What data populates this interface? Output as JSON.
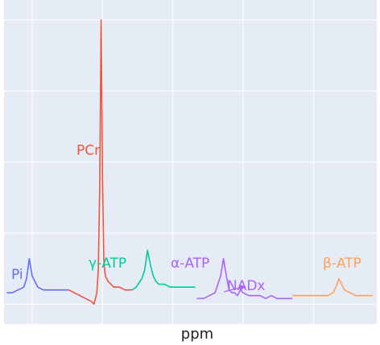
{
  "chart_data": {
    "type": "line",
    "title": "",
    "xlabel": "ppm",
    "ylabel": "",
    "x_reversed": true,
    "tick_labels_shown": false,
    "grid": true,
    "background": "#E5ECF6",
    "gridline_color": "#FFFFFF",
    "legend": "none",
    "series": [
      {
        "name": "Pi",
        "color": "#636EFA",
        "x": [
          6.8,
          6.4,
          6.0,
          5.6,
          5.4,
          5.2,
          5.0,
          4.6,
          4.2,
          3.8,
          3.4,
          3.0,
          2.6,
          2.4
        ],
        "y": [
          0.04,
          0.04,
          0.05,
          0.06,
          0.09,
          0.16,
          0.1,
          0.06,
          0.05,
          0.05,
          0.05,
          0.05,
          0.05,
          0.05
        ]
      },
      {
        "name": "PCr",
        "color": "#EF553B",
        "x": [
          2.4,
          2.0,
          1.6,
          1.2,
          0.8,
          0.6,
          0.4,
          0.3,
          0.2,
          0.1,
          0.0,
          -0.1,
          -0.2,
          -0.4,
          -0.6,
          -0.8,
          -1.2,
          -1.6,
          -2.0,
          -2.1
        ],
        "y": [
          0.05,
          0.04,
          0.03,
          0.02,
          0.01,
          0.0,
          0.04,
          0.12,
          0.4,
          1.0,
          0.45,
          0.15,
          0.1,
          0.08,
          0.07,
          0.06,
          0.06,
          0.05,
          0.05,
          0.05
        ]
      },
      {
        "name": "γ-ATP",
        "color": "#00CC96",
        "x": [
          -2.1,
          -2.4,
          -2.8,
          -3.0,
          -3.2,
          -3.4,
          -3.6,
          -3.8,
          -4.0,
          -4.4,
          -4.8,
          -5.2,
          -5.6,
          -6.0,
          -6.6
        ],
        "y": [
          0.05,
          0.06,
          0.09,
          0.12,
          0.19,
          0.14,
          0.1,
          0.08,
          0.07,
          0.07,
          0.06,
          0.06,
          0.06,
          0.06,
          0.06
        ]
      },
      {
        "name": "α-ATP",
        "color": "#AB63FA",
        "x": [
          -6.7,
          -7.2,
          -7.6,
          -8.0,
          -8.4,
          -8.6,
          -8.8,
          -9.0,
          -9.2,
          -9.4,
          -9.6,
          -9.8,
          -10.0,
          -10.4,
          -10.8,
          -11.2,
          -11.6,
          -12.0,
          -12.4,
          -12.8,
          -13.2,
          -13.5
        ],
        "y": [
          0.02,
          0.02,
          0.03,
          0.04,
          0.1,
          0.16,
          0.1,
          0.05,
          0.04,
          0.04,
          0.03,
          0.05,
          0.04,
          0.03,
          0.03,
          0.03,
          0.02,
          0.03,
          0.02,
          0.02,
          0.02,
          0.02
        ]
      },
      {
        "name": "β-ATP",
        "color": "#FFA15A",
        "x": [
          -13.5,
          -14.0,
          -14.5,
          -15.0,
          -15.5,
          -16.0,
          -16.4,
          -16.6,
          -16.8,
          -17.0,
          -17.2,
          -17.6,
          -18.0,
          -18.4,
          -18.8,
          -19.2
        ],
        "y": [
          0.03,
          0.03,
          0.03,
          0.03,
          0.03,
          0.03,
          0.04,
          0.06,
          0.09,
          0.07,
          0.05,
          0.04,
          0.03,
          0.03,
          0.03,
          0.03
        ]
      }
    ],
    "xlim": [
      7.0,
      -19.5
    ],
    "ylim": [
      -0.07,
      1.07
    ],
    "x_gridlines": [
      5.0,
      0.0,
      -5.0,
      -10.0,
      -15.0
    ],
    "y_gridlines": [
      0.0,
      0.25,
      0.5,
      0.75,
      1.0
    ],
    "annotations": [
      {
        "text": "Pi",
        "series": 0
      },
      {
        "text": "PCr",
        "series": 1
      },
      {
        "text": "γ-ATP",
        "series": 2
      },
      {
        "text": "α-ATP",
        "series": 3
      },
      {
        "text": "NADx",
        "series": 3,
        "arrow": true,
        "points_to_x": -9.8,
        "points_to_y": 0.05
      },
      {
        "text": "β-ATP",
        "series": 4
      }
    ]
  }
}
